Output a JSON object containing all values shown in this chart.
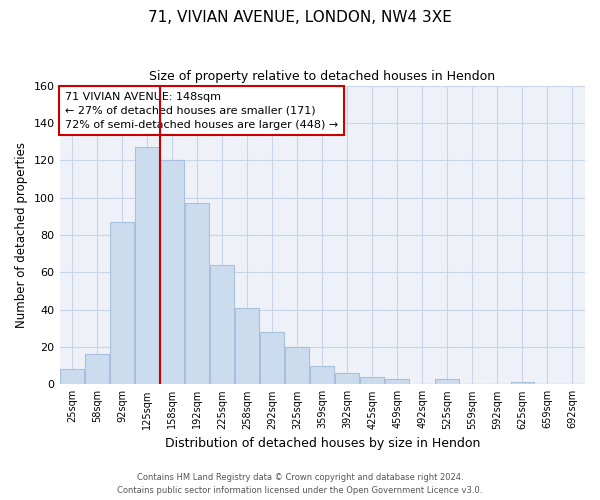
{
  "title": "71, VIVIAN AVENUE, LONDON, NW4 3XE",
  "subtitle": "Size of property relative to detached houses in Hendon",
  "xlabel": "Distribution of detached houses by size in Hendon",
  "ylabel": "Number of detached properties",
  "bar_color": "#ccdcef",
  "bar_edge_color": "#a8c0dc",
  "categories": [
    "25sqm",
    "58sqm",
    "92sqm",
    "125sqm",
    "158sqm",
    "192sqm",
    "225sqm",
    "258sqm",
    "292sqm",
    "325sqm",
    "359sqm",
    "392sqm",
    "425sqm",
    "459sqm",
    "492sqm",
    "525sqm",
    "559sqm",
    "592sqm",
    "625sqm",
    "659sqm",
    "692sqm"
  ],
  "values": [
    8,
    16,
    87,
    127,
    120,
    97,
    64,
    41,
    28,
    20,
    10,
    6,
    4,
    3,
    0,
    3,
    0,
    0,
    1,
    0,
    0
  ],
  "ylim": [
    0,
    160
  ],
  "yticks": [
    0,
    20,
    40,
    60,
    80,
    100,
    120,
    140,
    160
  ],
  "property_line_x": 3.5,
  "annotation_line1": "71 VIVIAN AVENUE: 148sqm",
  "annotation_line2": "← 27% of detached houses are smaller (171)",
  "annotation_line3": "72% of semi-detached houses are larger (448) →",
  "annotation_box_color": "#ffffff",
  "annotation_box_edge": "#cc0000",
  "property_line_color": "#cc0000",
  "grid_color": "#c8d4e8",
  "plot_bg_color": "#eef2f8",
  "fig_bg_color": "#ffffff",
  "footer_line1": "Contains HM Land Registry data © Crown copyright and database right 2024.",
  "footer_line2": "Contains public sector information licensed under the Open Government Licence v3.0."
}
